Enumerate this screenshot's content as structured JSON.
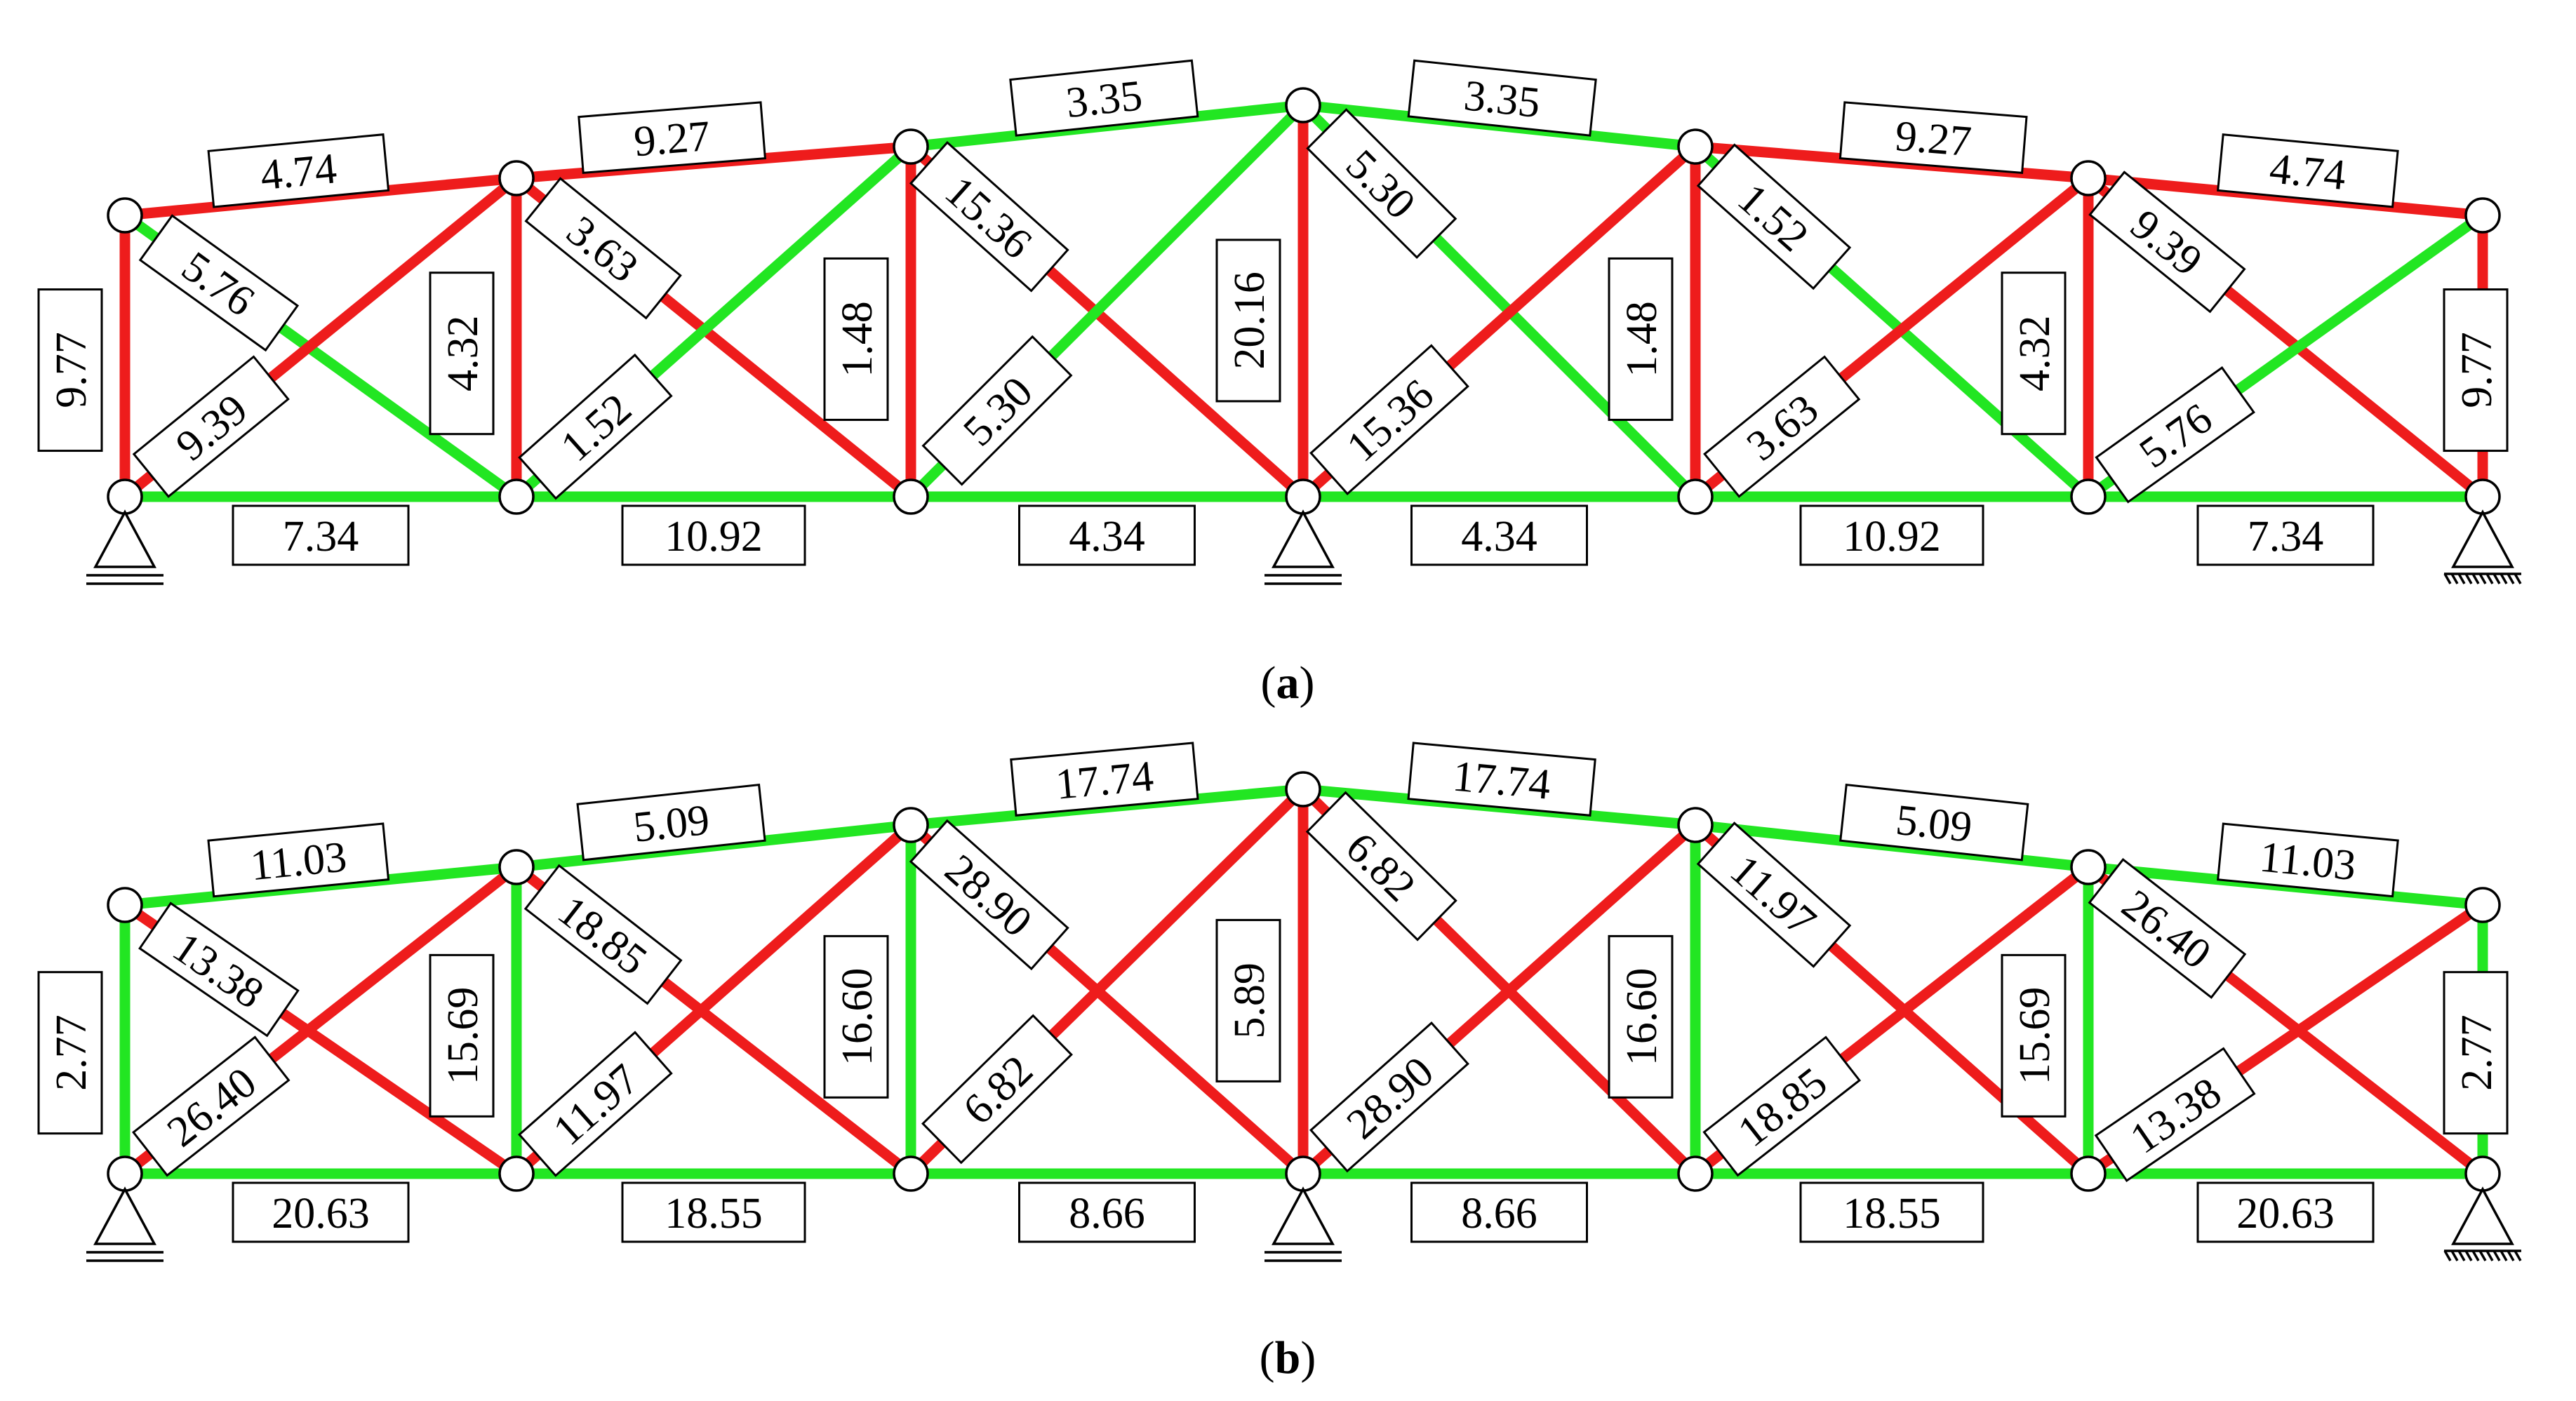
{
  "colors": {
    "red": "#ee1c1c",
    "green": "#22e622",
    "node_fill": "#ffffff",
    "outline": "#000000"
  },
  "panels": [
    {
      "caption_open": "(",
      "caption_letter": "a",
      "caption_close": ")",
      "members": [
        {
          "id": "bot1",
          "color": "green",
          "label": "7.34"
        },
        {
          "id": "bot2",
          "color": "green",
          "label": "10.92"
        },
        {
          "id": "bot3",
          "color": "green",
          "label": "4.34"
        },
        {
          "id": "bot4",
          "color": "green",
          "label": "4.34"
        },
        {
          "id": "bot5",
          "color": "green",
          "label": "10.92"
        },
        {
          "id": "bot6",
          "color": "green",
          "label": "7.34"
        },
        {
          "id": "top1",
          "color": "red",
          "label": "4.74"
        },
        {
          "id": "top2",
          "color": "red",
          "label": "9.27"
        },
        {
          "id": "top3",
          "color": "green",
          "label": "3.35"
        },
        {
          "id": "top4",
          "color": "green",
          "label": "3.35"
        },
        {
          "id": "top5",
          "color": "red",
          "label": "9.27"
        },
        {
          "id": "top6",
          "color": "red",
          "label": "4.74"
        },
        {
          "id": "v0",
          "color": "red",
          "label": "9.77"
        },
        {
          "id": "v1",
          "color": "red",
          "label": "4.32"
        },
        {
          "id": "v2",
          "color": "red",
          "label": "1.48"
        },
        {
          "id": "v3",
          "color": "red",
          "label": "20.16"
        },
        {
          "id": "v4",
          "color": "red",
          "label": "1.48"
        },
        {
          "id": "v5",
          "color": "red",
          "label": "4.32"
        },
        {
          "id": "v6",
          "color": "red",
          "label": "9.77"
        },
        {
          "id": "d1a",
          "color": "green",
          "label": "5.76"
        },
        {
          "id": "d1b",
          "color": "red",
          "label": "9.39"
        },
        {
          "id": "d2a",
          "color": "red",
          "label": "3.63"
        },
        {
          "id": "d2b",
          "color": "green",
          "label": "1.52"
        },
        {
          "id": "d3a",
          "color": "red",
          "label": "15.36"
        },
        {
          "id": "d3b",
          "color": "green",
          "label": "5.30"
        },
        {
          "id": "d4a",
          "color": "green",
          "label": "5.30"
        },
        {
          "id": "d4b",
          "color": "red",
          "label": "15.36"
        },
        {
          "id": "d5a",
          "color": "green",
          "label": "1.52"
        },
        {
          "id": "d5b",
          "color": "red",
          "label": "3.63"
        },
        {
          "id": "d6a",
          "color": "red",
          "label": "9.39"
        },
        {
          "id": "d6b",
          "color": "green",
          "label": "5.76"
        }
      ]
    },
    {
      "caption_open": "(",
      "caption_letter": "b",
      "caption_close": ")",
      "members": [
        {
          "id": "bot1",
          "color": "green",
          "label": "20.63"
        },
        {
          "id": "bot2",
          "color": "green",
          "label": "18.55"
        },
        {
          "id": "bot3",
          "color": "green",
          "label": "8.66"
        },
        {
          "id": "bot4",
          "color": "green",
          "label": "8.66"
        },
        {
          "id": "bot5",
          "color": "green",
          "label": "18.55"
        },
        {
          "id": "bot6",
          "color": "green",
          "label": "20.63"
        },
        {
          "id": "top1",
          "color": "green",
          "label": "11.03"
        },
        {
          "id": "top2",
          "color": "green",
          "label": "5.09"
        },
        {
          "id": "top3",
          "color": "green",
          "label": "17.74"
        },
        {
          "id": "top4",
          "color": "green",
          "label": "17.74"
        },
        {
          "id": "top5",
          "color": "green",
          "label": "5.09"
        },
        {
          "id": "top6",
          "color": "green",
          "label": "11.03"
        },
        {
          "id": "v0",
          "color": "green",
          "label": "2.77"
        },
        {
          "id": "v1",
          "color": "green",
          "label": "15.69"
        },
        {
          "id": "v2",
          "color": "green",
          "label": "16.60"
        },
        {
          "id": "v3",
          "color": "red",
          "label": "5.89"
        },
        {
          "id": "v4",
          "color": "green",
          "label": "16.60"
        },
        {
          "id": "v5",
          "color": "green",
          "label": "15.69"
        },
        {
          "id": "v6",
          "color": "green",
          "label": "2.77"
        },
        {
          "id": "d1a",
          "color": "red",
          "label": "13.38"
        },
        {
          "id": "d1b",
          "color": "red",
          "label": "26.40"
        },
        {
          "id": "d2a",
          "color": "red",
          "label": "18.85"
        },
        {
          "id": "d2b",
          "color": "red",
          "label": "11.97"
        },
        {
          "id": "d3a",
          "color": "red",
          "label": "28.90"
        },
        {
          "id": "d3b",
          "color": "red",
          "label": "6.82"
        },
        {
          "id": "d4a",
          "color": "red",
          "label": "6.82"
        },
        {
          "id": "d4b",
          "color": "red",
          "label": "28.90"
        },
        {
          "id": "d5a",
          "color": "red",
          "label": "11.97"
        },
        {
          "id": "d5b",
          "color": "red",
          "label": "18.85"
        },
        {
          "id": "d6a",
          "color": "red",
          "label": "26.40"
        },
        {
          "id": "d6b",
          "color": "red",
          "label": "13.38"
        }
      ]
    }
  ]
}
